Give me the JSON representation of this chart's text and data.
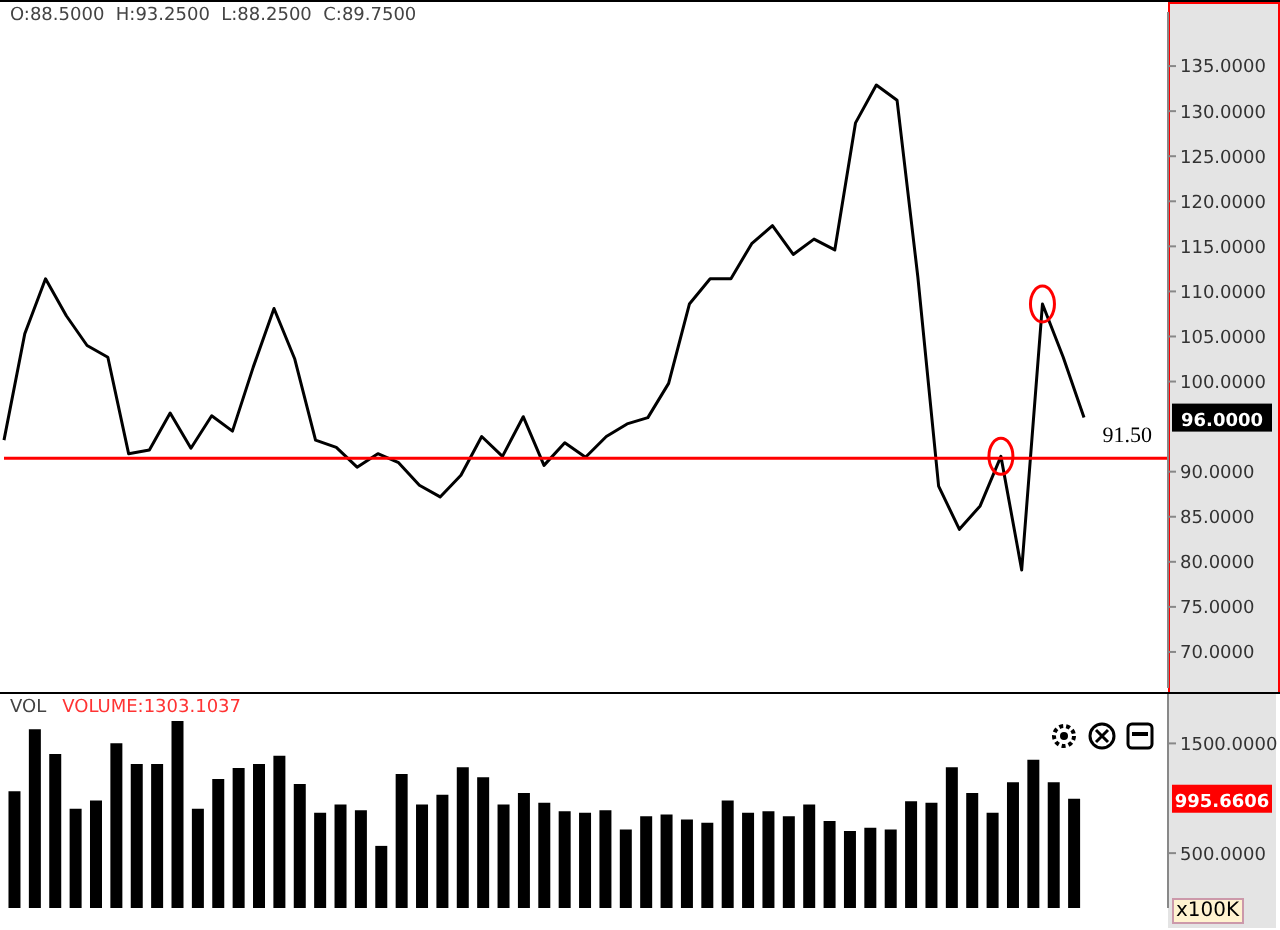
{
  "chart_data": [
    {
      "type": "line",
      "annotations": [
        "O:88.5000  H:93.2500  L:88.2500  C:89.7500",
        "96.0000"
      ],
      "categories": [
        null,
        null,
        null,
        null,
        null,
        null,
        null,
        null,
        null,
        null,
        null,
        null,
        null,
        null,
        null,
        null,
        null,
        null,
        null,
        null,
        null,
        null,
        null,
        null,
        null,
        null,
        null,
        null,
        null,
        null,
        null,
        null,
        null,
        null,
        null,
        null,
        null,
        null,
        null,
        null,
        null,
        null,
        null,
        null,
        null,
        null,
        null,
        null,
        null,
        null,
        null,
        null,
        null
      ],
      "values": [
        93.5,
        105.3,
        111.4,
        107.3,
        104.0,
        102.7,
        92.0,
        92.4,
        96.5,
        92.6,
        96.2,
        94.5,
        101.6,
        108.1,
        102.5,
        93.5,
        92.7,
        90.5,
        92.0,
        91.0,
        88.5,
        87.2,
        89.6,
        93.9,
        91.7,
        96.1,
        90.7,
        93.2,
        91.6,
        93.9,
        95.3,
        96.0,
        99.8,
        108.6,
        111.4,
        111.4,
        115.3,
        117.3,
        114.1,
        115.8,
        114.6,
        128.7,
        132.9,
        131.2,
        111.6,
        88.4,
        83.6,
        86.2,
        91.7,
        79.1,
        108.6,
        102.7,
        96.0
      ],
      "color": "#000000",
      "ylim": [
        66,
        141
      ],
      "yticks": [
        {
          "value": 70,
          "label": "70.0000"
        },
        {
          "value": 75,
          "label": "75.0000"
        },
        {
          "value": 80,
          "label": "80.0000"
        },
        {
          "value": 85,
          "label": "85.0000"
        },
        {
          "value": 90,
          "label": "90.0000"
        },
        {
          "value": 100,
          "label": "100.0000"
        },
        {
          "value": 105,
          "label": "105.0000"
        },
        {
          "value": 110,
          "label": "110.0000"
        },
        {
          "value": 115,
          "label": "115.0000"
        },
        {
          "value": 120,
          "label": "120.0000"
        },
        {
          "value": 125,
          "label": "125.0000"
        },
        {
          "value": 130,
          "label": "130.0000"
        },
        {
          "value": 135,
          "label": "135.0000"
        }
      ],
      "ref_lines": [
        {
          "axis": "y",
          "value": 91.5,
          "label": "91.50",
          "color": "#ff0000"
        }
      ]
    },
    {
      "type": "bar",
      "title": "VOL",
      "subtitle": "VOLUME:1303.1037",
      "ylabel": "x100K",
      "annotations": [
        "995.6606"
      ],
      "categories": [
        null,
        null,
        null,
        null,
        null,
        null,
        null,
        null,
        null,
        null,
        null,
        null,
        null,
        null,
        null,
        null,
        null,
        null,
        null,
        null,
        null,
        null,
        null,
        null,
        null,
        null,
        null,
        null,
        null,
        null,
        null,
        null,
        null,
        null,
        null,
        null,
        null,
        null,
        null,
        null,
        null,
        null,
        null,
        null,
        null,
        null,
        null,
        null,
        null,
        null,
        null,
        null,
        null
      ],
      "values": [
        1063,
        1629,
        1403,
        905,
        980,
        1501,
        1312,
        1312,
        1704,
        905,
        1176,
        1275,
        1312,
        1388,
        1131,
        867,
        943,
        890,
        566,
        1222,
        943,
        1033,
        1282,
        1192,
        943,
        1048,
        958,
        882,
        867,
        890,
        716,
        837,
        852,
        807,
        777,
        980,
        867,
        882,
        837,
        943,
        792,
        701,
        732,
        716,
        973,
        958,
        1282,
        1048,
        867,
        1146,
        1350,
        1146,
        995.6606
      ],
      "color": "#000000",
      "ylim": [
        0,
        1950
      ],
      "yticks": [
        {
          "value": 500,
          "label": "500.0000"
        },
        {
          "value": 1500,
          "label": "1500.0000"
        }
      ]
    }
  ]
}
